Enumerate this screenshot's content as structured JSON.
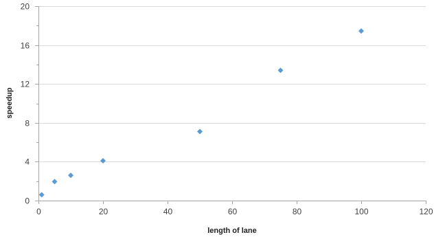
{
  "chart_data": {
    "type": "scatter",
    "title": "",
    "xlabel": "length of lane",
    "ylabel": "speedup",
    "xlim": [
      0,
      120
    ],
    "ylim": [
      0,
      20
    ],
    "x_ticks": [
      0,
      20,
      40,
      60,
      80,
      100,
      120
    ],
    "y_ticks": [
      0,
      4,
      8,
      12,
      16,
      20
    ],
    "grid": "horizontal",
    "legend": "none",
    "marker": "diamond",
    "colors": {
      "marker": "#5b9bd5",
      "grid": "#d9d9d9",
      "axis": "#a6a6a6"
    },
    "series": [
      {
        "points": [
          {
            "x": 1,
            "y": 0.6
          },
          {
            "x": 5,
            "y": 1.95
          },
          {
            "x": 10,
            "y": 2.6
          },
          {
            "x": 20,
            "y": 4.1
          },
          {
            "x": 50,
            "y": 7.1
          },
          {
            "x": 75,
            "y": 13.4
          },
          {
            "x": 100,
            "y": 17.45
          }
        ]
      }
    ]
  }
}
